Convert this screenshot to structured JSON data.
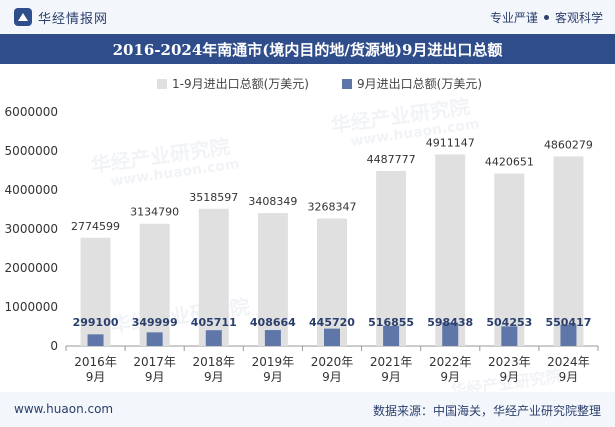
{
  "header": {
    "brand_name": "华经情报网",
    "tag_left": "专业严谨",
    "tag_right": "客观科学"
  },
  "title": "2016-2024年南通市(境内目的地/货源地)9月进出口总额",
  "watermarks": [
    "华经产业研究院",
    "www.huaon.com"
  ],
  "footer": {
    "url": "www.huaon.com",
    "source": "数据来源：中国海关，华经产业研究院整理"
  },
  "colors": {
    "series_total": "#e0e0e0",
    "series_month": "#5f77a8",
    "title_bg": "#2f4d8a"
  },
  "chart_data": {
    "type": "bar",
    "categories": [
      "2016年\n9月",
      "2017年\n9月",
      "2018年\n9月",
      "2019年\n9月",
      "2020年\n9月",
      "2021年\n9月",
      "2022年\n9月",
      "2023年\n9月",
      "2024年\n9月"
    ],
    "series": [
      {
        "name": "1-9月进出口总额(万美元)",
        "values": [
          2774599,
          3134790,
          3518597,
          3408349,
          3268347,
          4487777,
          4911147,
          4420651,
          4860279
        ]
      },
      {
        "name": "9月进出口总额(万美元)",
        "values": [
          299100,
          349999,
          405711,
          408664,
          445720,
          516855,
          598438,
          504253,
          550417
        ]
      }
    ],
    "ylim": [
      0,
      6000000
    ],
    "yticks": [
      0,
      1000000,
      2000000,
      3000000,
      4000000,
      5000000,
      6000000
    ],
    "legend_position": "top",
    "grid": false
  }
}
